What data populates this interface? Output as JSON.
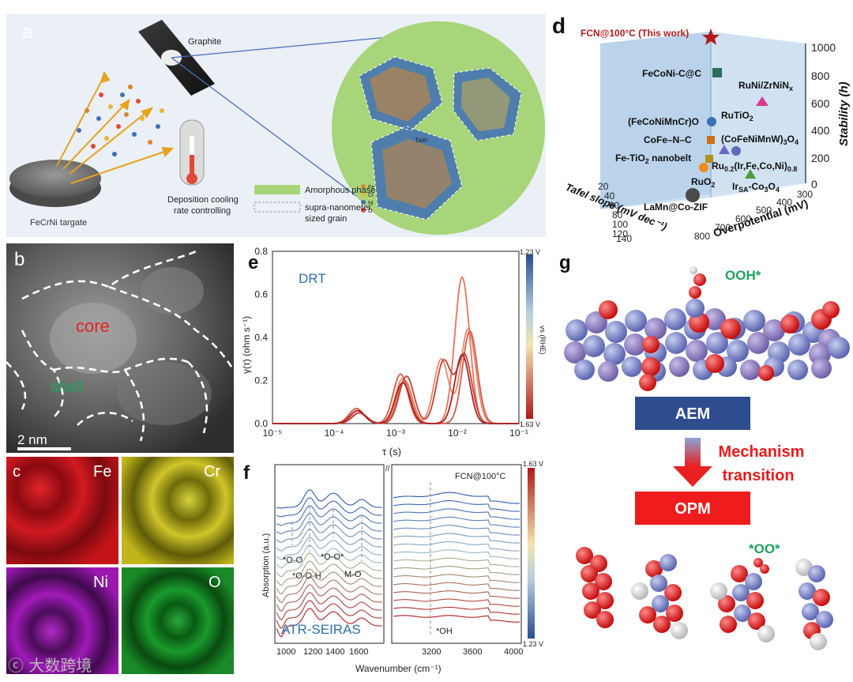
{
  "panel_a": {
    "letter": "a",
    "graphite_label": "Graphite",
    "target_label": "FeCrNi targate",
    "cooling_label_1": "Deposition cooling",
    "cooling_label_2": "rate controlling",
    "legend_amorphous": "Amorphous phase",
    "legend_grain_1": "supra-nanometer",
    "legend_grain_2": "sized grain",
    "twin_label": "Twin",
    "elements": [
      "Fe",
      "Cr",
      "Ni",
      "O"
    ],
    "colors": {
      "background": "#eaf0f6",
      "amorphous": "#a8d47a",
      "fe": "#d9862b",
      "cr": "#e7b73b",
      "ni": "#3f6fb5",
      "o": "#e0483a"
    }
  },
  "panel_b": {
    "letter": "b",
    "core_label": "core",
    "shell_label": "shell",
    "scale_label": "2 nm"
  },
  "panel_c": {
    "letter": "c",
    "maps": [
      {
        "element": "Fe",
        "color": "#c8101a"
      },
      {
        "element": "Cr",
        "color": "#c9c21a"
      },
      {
        "element": "Ni",
        "color": "#9a1fb0"
      },
      {
        "element": "O",
        "color": "#1a9a2c"
      }
    ]
  },
  "panel_d": {
    "letter": "d",
    "this_work": "FCN@100°C (This work)",
    "z_axis_label": "Stability (h)",
    "x_axis_label": "Tafel slope (mV dec⁻¹)",
    "y_axis_label": "Overpotential (mV)",
    "z_ticks": [
      "0",
      "200",
      "400",
      "600",
      "800",
      "1000"
    ],
    "x_ticks": [
      "20",
      "40",
      "60",
      "80",
      "100",
      "120",
      "140"
    ],
    "y_ticks": [
      "800",
      "700",
      "600",
      "500",
      "400",
      "300"
    ],
    "materials": [
      "FeCoNi-C@C",
      "RuNi/ZrNiN",
      "RuTiO",
      "(FeCoNiMnCr)O",
      "CoFe–N–C",
      "(CoFeNiMnW)",
      "Fe-TiO",
      "nanobelt",
      "Ru",
      "(Ir,Fe,Co,Ni)",
      "RuO",
      "Ir",
      "-Co",
      "LaMn@Co-ZIF"
    ],
    "subscripts": [
      "x",
      "2",
      "3",
      "4",
      "0.2",
      "0.8",
      "SA"
    ],
    "colors": {
      "wall": "#a9c8e6",
      "star": "#b01c1c"
    }
  },
  "panel_e": {
    "letter": "e",
    "title": "DRT",
    "ylabel": "γ(τ) (ohm s⁻¹)",
    "xlabel": "τ (s)",
    "colorbar_top": "1.23 V",
    "colorbar_bottom": "1.63 V",
    "colorbar_label": "vs (RHE)"
  },
  "panel_f": {
    "letter": "f",
    "sample": "FCN@100°C",
    "method": "ATR-SEIRAS",
    "ylabel": "Absorption (a.u.)",
    "xlabel": "Wavenumber (cm⁻¹)",
    "peaks": [
      "*O-O",
      "*O-O-H",
      "*O-O*",
      "M-O",
      "*OH"
    ],
    "colorbar_top": "1.63 V",
    "colorbar_bottom": "1.23 V"
  },
  "panel_g": {
    "letter": "g",
    "ooh_label": "OOH*",
    "aem_label": "AEM",
    "mechanism_label_1": "Mechanism",
    "mechanism_label_2": "transition",
    "opm_label": "OPM",
    "oo_label": "*OO*",
    "colors": {
      "aem_box": "#2e4d8f",
      "opm_box": "#ee1c1c",
      "highlight": "#1fa35a"
    }
  },
  "watermark": "大数跨境",
  "chart_data": [
    {
      "type": "line",
      "title": "DRT",
      "xlabel": "τ (s)",
      "ylabel": "γ(τ) (ohm s⁻¹)",
      "x_scale": "log",
      "xlim": [
        1e-05,
        0.1
      ],
      "ylim": [
        0,
        0.8
      ],
      "x_ticks": [
        "10⁻⁵",
        "10⁻⁴",
        "10⁻³",
        "10⁻²",
        "10⁻¹"
      ],
      "y_ticks": [
        "0.0",
        "0.2",
        "0.4",
        "0.6",
        "0.8"
      ],
      "series": [
        {
          "peaks": [
            [
              0.00024,
              0.06
            ],
            [
              0.0013,
              0.21
            ],
            [
              0.0055,
              0.3
            ],
            [
              0.015,
              0.44
            ]
          ]
        },
        {
          "peaks": [
            [
              0.00025,
              0.05
            ],
            [
              0.0014,
              0.2
            ],
            [
              0.012,
              0.68
            ]
          ]
        },
        {
          "peaks": [
            [
              0.00023,
              0.07
            ],
            [
              0.0012,
              0.23
            ],
            [
              0.016,
              0.43
            ]
          ]
        },
        {
          "peaks": [
            [
              0.00026,
              0.05
            ],
            [
              0.0015,
              0.22
            ],
            [
              0.006,
              0.29
            ],
            [
              0.013,
              0.32
            ]
          ]
        },
        {
          "peaks": [
            [
              0.00024,
              0.06
            ],
            [
              0.0013,
              0.19
            ],
            [
              0.012,
              0.32
            ]
          ]
        }
      ]
    },
    {
      "type": "line",
      "xlabel": "Wavenumber (cm⁻¹)",
      "ylabel": "Absorption (a.u.)",
      "x_ticks": [
        "1000",
        "1200",
        "1400",
        "1600",
        "3200",
        "3600",
        "4000"
      ],
      "x_break": [
        1700,
        2900
      ]
    }
  ]
}
